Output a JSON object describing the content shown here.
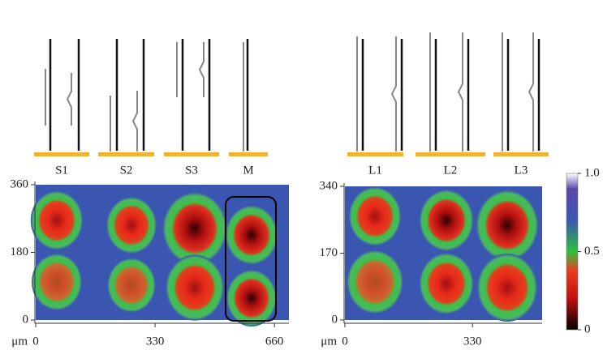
{
  "left_panel": {
    "labels": [
      "S1",
      "S2",
      "S3",
      "M"
    ],
    "unit": "μm",
    "xlim": [
      0,
      700
    ],
    "ylim": [
      0,
      360
    ],
    "xticks": [
      0,
      330,
      660
    ],
    "yticks": [
      0,
      180,
      360
    ]
  },
  "right_panel": {
    "labels": [
      "L1",
      "L2",
      "L3"
    ],
    "unit": "μm",
    "xlim": [
      0,
      510
    ],
    "ylim": [
      0,
      340
    ],
    "xticks": [
      0,
      330
    ],
    "yticks": [
      0,
      170,
      340
    ]
  },
  "colorbar": {
    "lim": [
      0,
      1
    ],
    "ticks": [
      0,
      0.5,
      {
        "value": 1,
        "label": "1.0"
      }
    ]
  }
}
